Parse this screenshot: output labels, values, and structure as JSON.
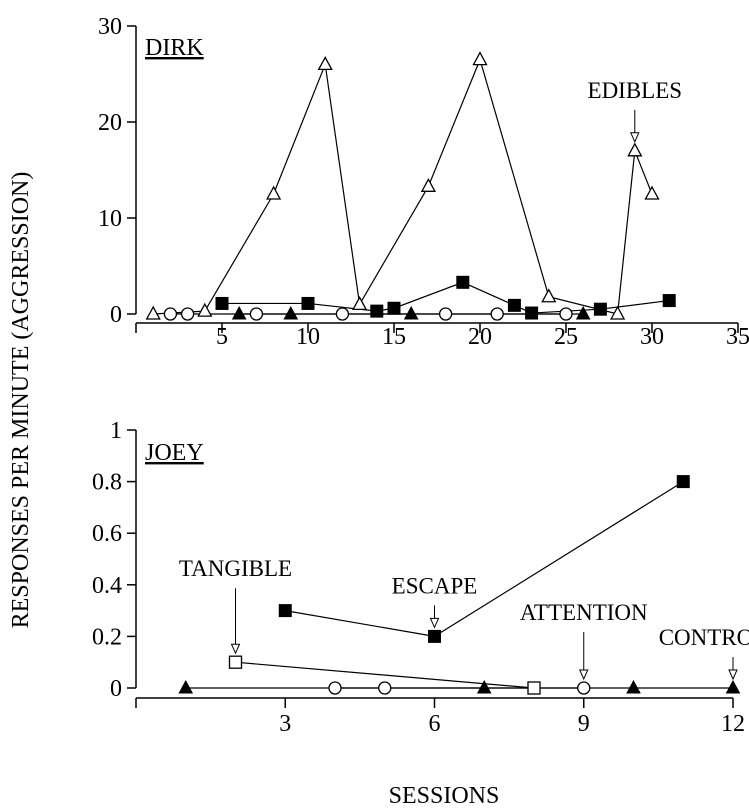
{
  "chart_data": [
    {
      "type": "line",
      "panel_label": "DIRK",
      "xlim": [
        0,
        35
      ],
      "ylim": [
        0,
        30
      ],
      "xticks": [
        5,
        10,
        15,
        20,
        25,
        30,
        35
      ],
      "yticks": [
        0,
        10,
        20,
        30
      ],
      "series": [
        {
          "marker": "open-triangle",
          "color": "#000000",
          "x": [
            1,
            4,
            8,
            11,
            13,
            17,
            20,
            24,
            28,
            29,
            30
          ],
          "y": [
            0,
            0.3,
            12.5,
            26,
            1,
            13.3,
            26.5,
            1.8,
            0,
            17,
            12.5
          ]
        },
        {
          "marker": "filled-square",
          "color": "#000000",
          "x": [
            5,
            10,
            14,
            15,
            19,
            22,
            23,
            27,
            31
          ],
          "y": [
            1.1,
            1.1,
            0.3,
            0.6,
            3.3,
            0.9,
            0.1,
            0.5,
            1.4
          ]
        },
        {
          "marker": "open-circle",
          "color": "#000000",
          "x": [
            2,
            3,
            7,
            12,
            18,
            21,
            25
          ],
          "y": [
            0,
            0,
            0,
            0,
            0,
            0,
            0
          ]
        },
        {
          "marker": "filled-triangle",
          "color": "#000000",
          "x": [
            6,
            9,
            16,
            26
          ],
          "y": [
            0,
            0,
            0,
            0
          ]
        }
      ],
      "annotations": [
        {
          "text": "EDIBLES",
          "x": 29,
          "y": 17
        }
      ]
    },
    {
      "type": "line",
      "panel_label": "JOEY",
      "xlim": [
        0,
        12
      ],
      "ylim": [
        0,
        1
      ],
      "xticks": [
        3,
        6,
        9,
        12
      ],
      "yticks": [
        0,
        0.2,
        0.4,
        0.6,
        0.8,
        1
      ],
      "ytick_labels": [
        "0",
        "0.2",
        "0.4",
        "0.6",
        "0.8",
        "1"
      ],
      "series": [
        {
          "marker": "filled-square",
          "color": "#000000",
          "x": [
            3,
            6,
            11
          ],
          "y": [
            0.3,
            0.2,
            0.8
          ]
        },
        {
          "marker": "open-square",
          "color": "#000000",
          "x": [
            2,
            8
          ],
          "y": [
            0.1,
            0
          ]
        },
        {
          "marker": "open-circle",
          "color": "#000000",
          "x": [
            4,
            5,
            9
          ],
          "y": [
            0,
            0,
            0
          ]
        },
        {
          "marker": "filled-triangle",
          "color": "#000000",
          "x": [
            1,
            7,
            10,
            12
          ],
          "y": [
            0,
            0,
            0,
            0
          ]
        }
      ],
      "annotations": [
        {
          "text": "TANGIBLE",
          "x": 2,
          "y": 0.1
        },
        {
          "text": "ESCAPE",
          "x": 6,
          "y": 0.2
        },
        {
          "text": "ATTENTION",
          "x": 9,
          "y": 0
        },
        {
          "text": "CONTROL",
          "x": 12,
          "y": 0
        }
      ]
    }
  ],
  "ylabel": "RESPONSES PER MINUTE (AGGRESSION)",
  "xlabel": "SESSIONS"
}
